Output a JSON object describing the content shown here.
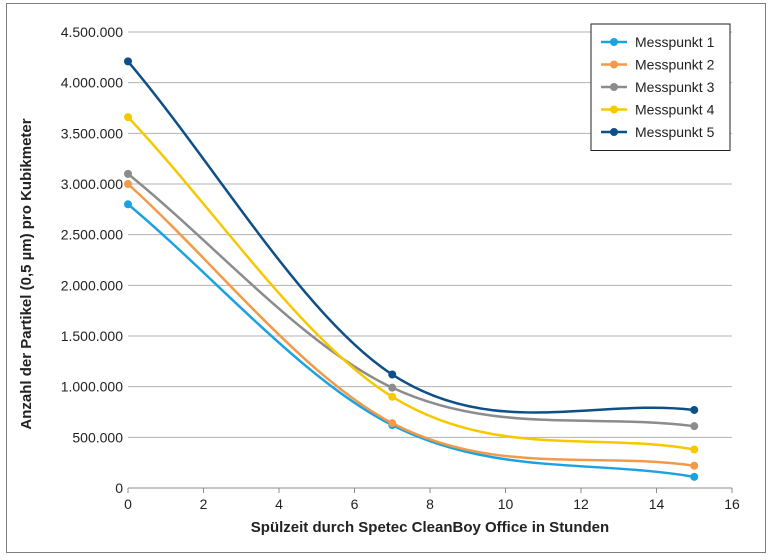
{
  "chart_data": {
    "type": "line",
    "title": "",
    "xlabel": "Spülzeit durch Spetec CleanBoy Office in Stunden",
    "ylabel": "Anzahl der Partikel (0,5 µm) pro Kubikmeter",
    "xlim": [
      0,
      16
    ],
    "ylim": [
      0,
      4500000
    ],
    "xticks": [
      0,
      2,
      4,
      6,
      8,
      10,
      12,
      14,
      16
    ],
    "yticks": [
      0,
      500000,
      1000000,
      1500000,
      2000000,
      2500000,
      3000000,
      3500000,
      4000000,
      4500000
    ],
    "xtick_labels": [
      "0",
      "2",
      "4",
      "6",
      "8",
      "10",
      "12",
      "14",
      "16"
    ],
    "ytick_labels": [
      "0",
      "500.000",
      "1.000.000",
      "1.500.000",
      "2.000.000",
      "2.500.000",
      "3.000.000",
      "3.500.000",
      "4.000.000",
      "4.500.000"
    ],
    "grid": "horizontal",
    "legend_position": "top-right",
    "smooth": true,
    "series": [
      {
        "name": "Messpunkt 1",
        "color": "#1aa3e0",
        "x": [
          0,
          7,
          15
        ],
        "y": [
          2800000,
          620000,
          110000
        ]
      },
      {
        "name": "Messpunkt 2",
        "color": "#f29a4a",
        "x": [
          0,
          7,
          15
        ],
        "y": [
          3000000,
          640000,
          220000
        ]
      },
      {
        "name": "Messpunkt 3",
        "color": "#8c8c8c",
        "x": [
          0,
          7,
          15
        ],
        "y": [
          3100000,
          990000,
          610000
        ]
      },
      {
        "name": "Messpunkt 4",
        "color": "#f7c800",
        "x": [
          0,
          7,
          15
        ],
        "y": [
          3660000,
          900000,
          380000
        ]
      },
      {
        "name": "Messpunkt 5",
        "color": "#0d4f86",
        "x": [
          0,
          7,
          15
        ],
        "y": [
          4210000,
          1120000,
          770000
        ]
      }
    ]
  }
}
